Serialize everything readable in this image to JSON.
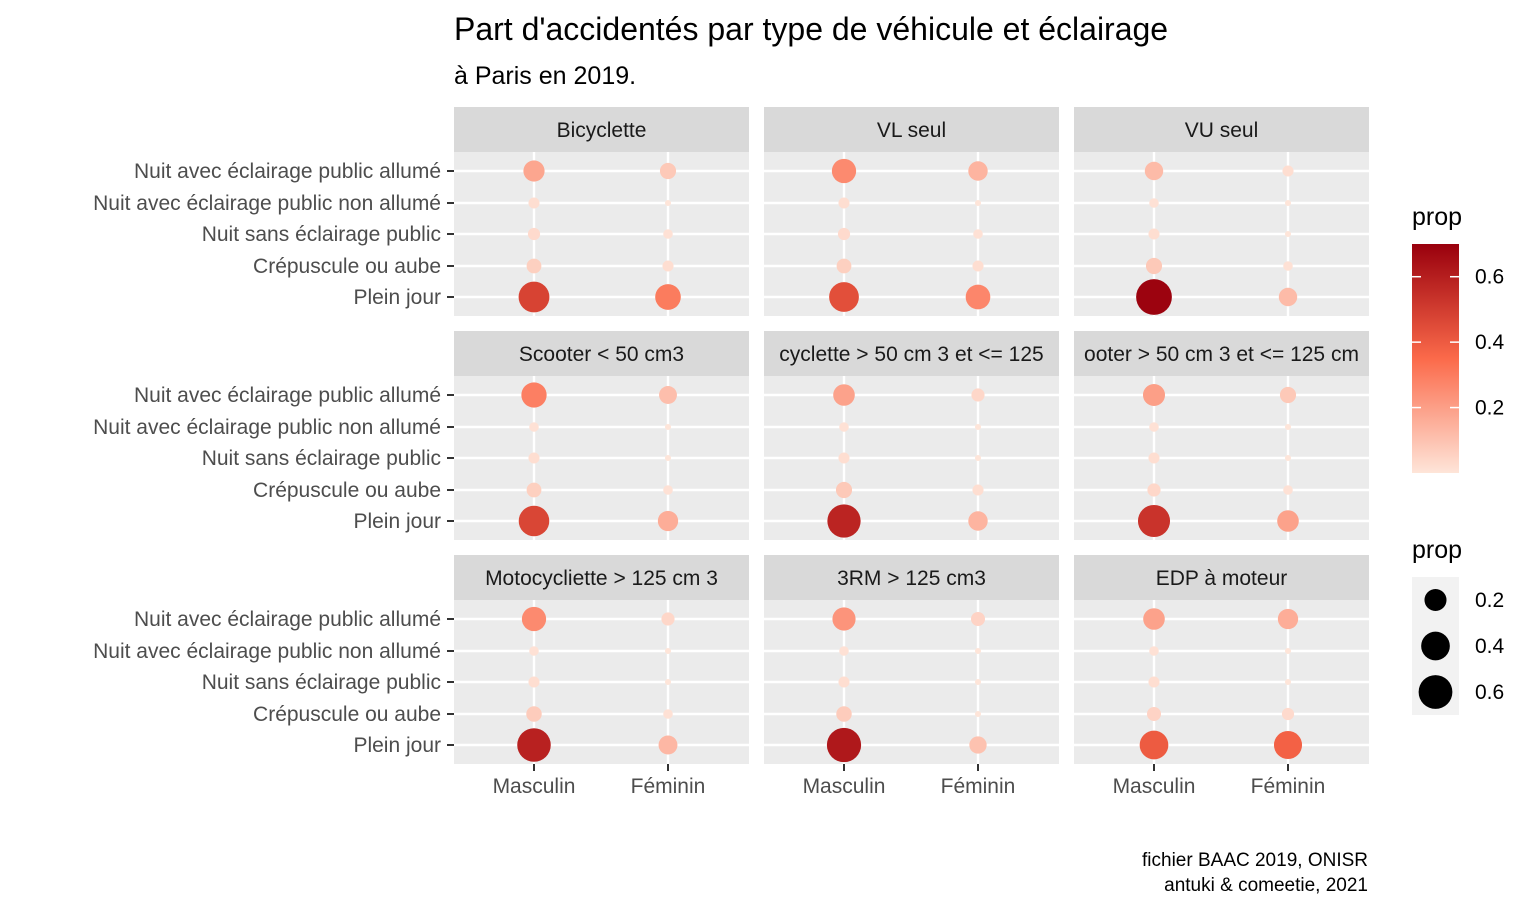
{
  "chart_data": {
    "type": "scatter",
    "title": "Part d'accidentés par type de véhicule et éclairage",
    "subtitle": "à Paris en 2019.",
    "caption": [
      "fichier BAAC 2019, ONISR",
      "antuki & comeetie, 2021"
    ],
    "x_categories": [
      "Masculin",
      "Féminin"
    ],
    "y_categories": [
      "Nuit avec éclairage public allumé",
      "Nuit avec éclairage public non allumé",
      "Nuit sans éclairage public",
      "Crépuscule ou aube",
      "Plein jour"
    ],
    "color_legend": {
      "title": "prop",
      "ticks": [
        "0.2",
        "0.4",
        "0.6"
      ],
      "low": "#fee5d9",
      "mid": "#fb6a4a",
      "high": "#99000d"
    },
    "size_legend": {
      "title": "prop",
      "ticks": [
        "0.2",
        "0.4",
        "0.6"
      ]
    },
    "panels": [
      {
        "name": "Bicyclette",
        "values": [
          [
            0.18,
            0.08
          ],
          [
            0.02,
            0.0
          ],
          [
            0.03,
            0.01
          ],
          [
            0.06,
            0.02
          ],
          [
            0.48,
            0.3
          ]
        ]
      },
      {
        "name": "VL seul",
        "values": [
          [
            0.26,
            0.14
          ],
          [
            0.02,
            0.0
          ],
          [
            0.03,
            0.01
          ],
          [
            0.06,
            0.02
          ],
          [
            0.44,
            0.27
          ]
        ]
      },
      {
        "name": "VU seul",
        "values": [
          [
            0.12,
            0.02
          ],
          [
            0.01,
            0.0
          ],
          [
            0.02,
            0.0
          ],
          [
            0.08,
            0.01
          ],
          [
            0.69,
            0.12
          ]
        ]
      },
      {
        "name": "Scooter < 50 cm3",
        "values": [
          [
            0.29,
            0.11
          ],
          [
            0.01,
            0.0
          ],
          [
            0.02,
            0.0
          ],
          [
            0.06,
            0.01
          ],
          [
            0.47,
            0.16
          ]
        ]
      },
      {
        "name": "cyclette > 50 cm 3 et <= 125",
        "values": [
          [
            0.19,
            0.04
          ],
          [
            0.01,
            0.0
          ],
          [
            0.02,
            0.0
          ],
          [
            0.08,
            0.02
          ],
          [
            0.58,
            0.14
          ]
        ]
      },
      {
        "name": "ooter > 50 cm 3 et <= 125 cm",
        "values": [
          [
            0.2,
            0.08
          ],
          [
            0.01,
            0.0
          ],
          [
            0.02,
            0.0
          ],
          [
            0.04,
            0.01
          ],
          [
            0.53,
            0.19
          ]
        ]
      },
      {
        "name": "Motocycliette > 125 cm 3",
        "values": [
          [
            0.26,
            0.04
          ],
          [
            0.01,
            0.0
          ],
          [
            0.02,
            0.0
          ],
          [
            0.07,
            0.01
          ],
          [
            0.59,
            0.13
          ]
        ]
      },
      {
        "name": "3RM > 125 cm3",
        "values": [
          [
            0.23,
            0.05
          ],
          [
            0.01,
            0.0
          ],
          [
            0.02,
            0.0
          ],
          [
            0.07,
            0.0
          ],
          [
            0.62,
            0.1
          ]
        ]
      },
      {
        "name": "EDP à moteur",
        "values": [
          [
            0.19,
            0.16
          ],
          [
            0.01,
            0.0
          ],
          [
            0.02,
            0.0
          ],
          [
            0.05,
            0.03
          ],
          [
            0.4,
            0.38
          ]
        ]
      }
    ]
  }
}
